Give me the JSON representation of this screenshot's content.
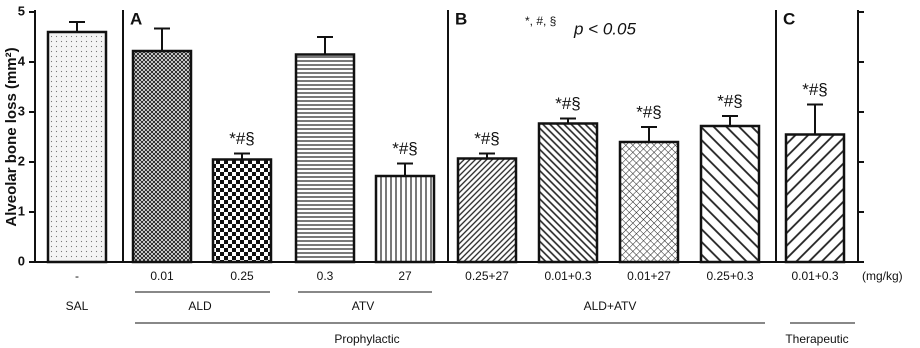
{
  "chart_data": {
    "type": "bar",
    "y_label": "Alveolar bone loss (mm²)",
    "categories": [
      "-",
      "0.01",
      "0.25",
      "0.3",
      "27",
      "0.25+27",
      "0.01+0.3",
      "0.01+27",
      "0.25+0.3",
      "0.01+0.3"
    ],
    "values": [
      4.6,
      4.22,
      2.05,
      4.15,
      1.72,
      2.07,
      2.77,
      2.4,
      2.72,
      2.55
    ],
    "errors": [
      0.2,
      0.45,
      0.12,
      0.35,
      0.25,
      0.1,
      0.1,
      0.3,
      0.2,
      0.6
    ],
    "annotations": [
      null,
      null,
      "*#§",
      null,
      "*#§",
      "*#§",
      "*#§",
      "*#§",
      "*#§",
      "*#§"
    ],
    "unit": "(mg/kg)",
    "group_labels": [
      "SAL",
      "ALD",
      "ATV",
      "ALD+ATV",
      "Prophylactic",
      "Therapeutic"
    ],
    "panels": [
      "A",
      "B",
      "C"
    ],
    "note_symbols": "*, #, §",
    "note_p": "p < 0.05",
    "ylim": [
      0,
      5
    ],
    "yticks": [
      0,
      1,
      2,
      3,
      4,
      5
    ]
  }
}
